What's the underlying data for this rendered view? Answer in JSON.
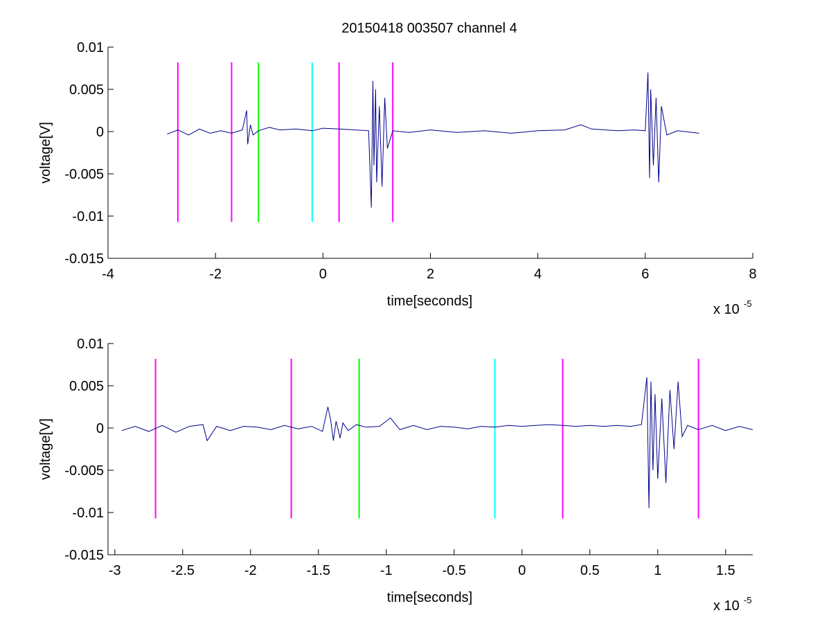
{
  "figure": {
    "title": "20150418 003507 channel 4"
  },
  "colors": {
    "signal": "#00008b",
    "magenta": "#ff00ff",
    "green": "#00ff00",
    "cyan": "#00ffff",
    "axis": "#000000"
  },
  "chart_data": [
    {
      "type": "line",
      "title": "20150418 003507 channel 4",
      "xlabel": "time[seconds]",
      "ylabel": "voltage[V]",
      "x_multiplier_label": "x 10",
      "x_multiplier_exponent": "-5",
      "xlim": [
        -4,
        8
      ],
      "ylim": [
        -0.015,
        0.01
      ],
      "xticks": [
        -4,
        -2,
        0,
        2,
        4,
        6,
        8
      ],
      "xtick_labels": [
        "-4",
        "-2",
        "0",
        "2",
        "4",
        "6",
        "8"
      ],
      "yticks": [
        0.01,
        0.005,
        0,
        -0.005,
        -0.01,
        -0.015
      ],
      "ytick_labels": [
        "0.01",
        "0.005",
        "0",
        "-0.005",
        "-0.01",
        "-0.015"
      ],
      "grid": false,
      "series": [
        {
          "x": [
            -2.9,
            -2.7,
            -2.5,
            -2.3,
            -2.1,
            -1.9,
            -1.7,
            -1.5,
            -1.42,
            -1.4,
            -1.35,
            -1.3,
            -1.2,
            -1.0,
            -0.8,
            -0.5,
            -0.2,
            0.0,
            0.3,
            0.6,
            0.85,
            0.9,
            0.93,
            0.95,
            0.98,
            1.0,
            1.05,
            1.1,
            1.15,
            1.2,
            1.3,
            1.6,
            2.0,
            2.5,
            3.0,
            3.5,
            4.0,
            4.5,
            4.8,
            5.0,
            5.5,
            5.8,
            6.0,
            6.05,
            6.08,
            6.1,
            6.15,
            6.2,
            6.25,
            6.3,
            6.4,
            6.6,
            7.0
          ],
          "y": [
            -0.0003,
            0.0002,
            -0.0004,
            0.0003,
            -0.0002,
            0.0001,
            -0.0002,
            0.0002,
            0.0025,
            -0.0015,
            0.0008,
            -0.0004,
            0.0001,
            0.0005,
            0.0002,
            0.0003,
            0.0001,
            0.0004,
            0.0003,
            0.0002,
            0.0001,
            -0.009,
            0.006,
            -0.004,
            0.005,
            -0.006,
            0.003,
            -0.0065,
            0.004,
            -0.002,
            0.0001,
            -0.0001,
            0.0002,
            -0.0001,
            0.0001,
            -0.0002,
            0.0001,
            0.0002,
            0.0008,
            0.0003,
            0.0001,
            0.0002,
            0.0001,
            0.007,
            -0.0055,
            0.005,
            -0.004,
            0.004,
            -0.006,
            0.003,
            -0.0004,
            0.0001,
            -0.0002
          ]
        }
      ],
      "vlines": [
        {
          "x": -2.7,
          "color": "magenta"
        },
        {
          "x": -1.7,
          "color": "magenta"
        },
        {
          "x": -1.2,
          "color": "green"
        },
        {
          "x": -0.2,
          "color": "cyan"
        },
        {
          "x": 0.3,
          "color": "magenta"
        },
        {
          "x": 1.3,
          "color": "magenta"
        }
      ],
      "vline_y_range": [
        -0.0107,
        0.0082
      ]
    },
    {
      "type": "line",
      "xlabel": "time[seconds]",
      "ylabel": "voltage[V]",
      "x_multiplier_label": "x 10",
      "x_multiplier_exponent": "-5",
      "xlim": [
        -3.05,
        1.7
      ],
      "ylim": [
        -0.015,
        0.01
      ],
      "xticks": [
        -3,
        -2.5,
        -2,
        -1.5,
        -1,
        -0.5,
        0,
        0.5,
        1,
        1.5
      ],
      "xtick_labels": [
        "-3",
        "-2.5",
        "-2",
        "-1.5",
        "-1",
        "-0.5",
        "0",
        "0.5",
        "1",
        "1.5"
      ],
      "yticks": [
        0.01,
        0.005,
        0,
        -0.005,
        -0.01,
        -0.015
      ],
      "ytick_labels": [
        "0.01",
        "0.005",
        "0",
        "-0.005",
        "-0.01",
        "-0.015"
      ],
      "grid": false,
      "series": [
        {
          "x": [
            -2.95,
            -2.85,
            -2.75,
            -2.65,
            -2.55,
            -2.45,
            -2.35,
            -2.32,
            -2.25,
            -2.15,
            -2.05,
            -1.95,
            -1.85,
            -1.75,
            -1.65,
            -1.55,
            -1.47,
            -1.43,
            -1.41,
            -1.39,
            -1.37,
            -1.34,
            -1.32,
            -1.28,
            -1.22,
            -1.15,
            -1.05,
            -0.97,
            -0.9,
            -0.8,
            -0.7,
            -0.6,
            -0.5,
            -0.4,
            -0.3,
            -0.2,
            -0.1,
            0.0,
            0.1,
            0.2,
            0.3,
            0.4,
            0.5,
            0.6,
            0.7,
            0.8,
            0.88,
            0.92,
            0.935,
            0.95,
            0.965,
            0.98,
            1.0,
            1.03,
            1.06,
            1.09,
            1.12,
            1.15,
            1.18,
            1.22,
            1.3,
            1.4,
            1.5,
            1.6,
            1.7
          ],
          "y": [
            -0.0003,
            0.0002,
            -0.0004,
            0.0003,
            -0.0005,
            0.0002,
            0.0004,
            -0.0015,
            0.0002,
            -0.0003,
            0.0002,
            0.0001,
            -0.0002,
            0.0003,
            -0.0001,
            0.0002,
            -0.0004,
            0.0025,
            0.001,
            -0.0015,
            0.0008,
            -0.0012,
            0.0006,
            -0.0003,
            0.0004,
            0.0001,
            0.0002,
            0.0012,
            -0.0002,
            0.0003,
            -0.0002,
            0.0002,
            0.0001,
            -0.0001,
            0.0002,
            0.0001,
            0.0003,
            0.0002,
            0.0003,
            0.0004,
            0.0003,
            0.0002,
            0.0003,
            0.0002,
            0.0003,
            0.0002,
            0.0004,
            0.006,
            -0.0095,
            0.0055,
            -0.005,
            0.004,
            -0.006,
            0.0035,
            -0.0065,
            0.0045,
            -0.0025,
            0.0055,
            -0.001,
            0.0003,
            -0.0002,
            0.0003,
            -0.0003,
            0.0002,
            -0.0002
          ]
        }
      ],
      "vlines": [
        {
          "x": -2.7,
          "color": "magenta"
        },
        {
          "x": -1.7,
          "color": "magenta"
        },
        {
          "x": -1.2,
          "color": "green"
        },
        {
          "x": -0.2,
          "color": "cyan"
        },
        {
          "x": 0.3,
          "color": "magenta"
        },
        {
          "x": 1.3,
          "color": "magenta"
        }
      ],
      "vline_y_range": [
        -0.0107,
        0.0082
      ]
    }
  ]
}
